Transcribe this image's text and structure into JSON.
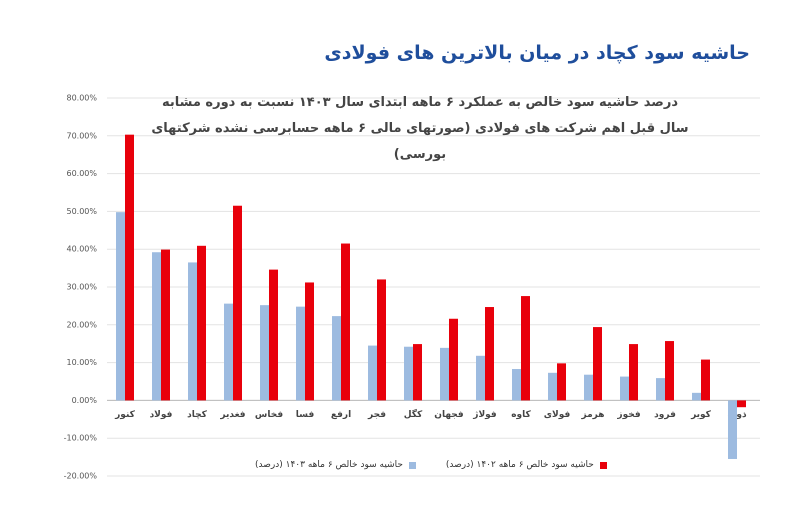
{
  "chart_data": {
    "type": "bar",
    "header": "حاشیه سود کچاد در میان بالاترین های فولادی",
    "title": "درصد حاشیه سود خالص به عملکرد ۶ ماهه ابتدای سال ۱۴۰۳ نسبت به دوره مشابه سال قبل اهم شرکت های فولادی (صورتهای مالی ۶ ماهه حسابرسی نشده شرکتهای بورسی)",
    "categories": [
      "کنور",
      "فولاد",
      "کچاد",
      "فغدیر",
      "فخاس",
      "فسا",
      "ارفع",
      "فجر",
      "کگل",
      "فجهان",
      "فولاژ",
      "کاوه",
      "فولای",
      "هرمز",
      "فخوز",
      "فرود",
      "کویر",
      "ذوب"
    ],
    "series": [
      {
        "name": "حاشیه سود خالص ۶ ماهه ۱۴۰۳ (درصد)",
        "color": "#9dbbe0",
        "values": [
          49.8,
          39.2,
          36.5,
          25.6,
          25.2,
          24.8,
          22.3,
          14.5,
          14.2,
          13.9,
          11.8,
          8.3,
          7.3,
          6.8,
          6.3,
          5.9,
          2.0,
          -15.5
        ]
      },
      {
        "name": "حاشیه سود خالص ۶ ماهه ۱۴۰۲ (درصد)",
        "color": "#e8000b",
        "values": [
          70.3,
          39.9,
          40.9,
          51.5,
          34.6,
          31.2,
          41.5,
          32.0,
          14.9,
          21.6,
          24.7,
          27.6,
          9.8,
          19.4,
          14.9,
          15.7,
          10.8,
          -1.8
        ]
      }
    ],
    "ylim": [
      -20,
      80
    ],
    "yticks": [
      {
        "value": -20,
        "label": "-20.00%"
      },
      {
        "value": -10,
        "label": "-10.00%"
      },
      {
        "value": 0,
        "label": "0.00%"
      },
      {
        "value": 10,
        "label": "10.00%"
      },
      {
        "value": 20,
        "label": "20.00%"
      },
      {
        "value": 30,
        "label": "30.00%"
      },
      {
        "value": 40,
        "label": "40.00%"
      },
      {
        "value": 50,
        "label": "50.00%"
      },
      {
        "value": 60,
        "label": "60.00%"
      },
      {
        "value": 70,
        "label": "70.00%"
      },
      {
        "value": 80,
        "label": "80.00%"
      }
    ],
    "grid": true
  }
}
